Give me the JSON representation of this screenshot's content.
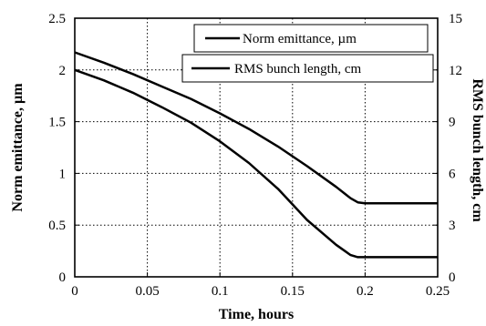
{
  "chart_data": {
    "type": "line",
    "xlabel": "Time, hours",
    "ylabel": "Norm emittance, µm",
    "y2label": "RMS bunch length, cm",
    "xlim": [
      0,
      0.25
    ],
    "ylim": [
      0,
      2.5
    ],
    "y2lim": [
      0,
      15
    ],
    "xticks": [
      "0",
      "0.05",
      "0.1",
      "0.15",
      "0.2",
      "0.25"
    ],
    "yticks": [
      "0",
      "0.5",
      "1",
      "1.5",
      "2",
      "2.5"
    ],
    "y2ticks": [
      "0",
      "3",
      "6",
      "9",
      "12",
      "15"
    ],
    "grid": true,
    "legend_position": "top-right",
    "series": [
      {
        "name": "Norm emittance, µm",
        "axis": "left",
        "x": [
          0,
          0.02,
          0.04,
          0.06,
          0.08,
          0.1,
          0.12,
          0.14,
          0.16,
          0.18,
          0.19,
          0.195,
          0.2,
          0.22,
          0.25
        ],
        "y": [
          2.17,
          2.07,
          1.96,
          1.84,
          1.72,
          1.58,
          1.43,
          1.26,
          1.07,
          0.87,
          0.76,
          0.72,
          0.71,
          0.71,
          0.71
        ]
      },
      {
        "name": "RMS bunch length, cm",
        "axis": "right",
        "x": [
          0,
          0.02,
          0.04,
          0.06,
          0.08,
          0.1,
          0.12,
          0.14,
          0.16,
          0.18,
          0.19,
          0.195,
          0.2,
          0.22,
          0.25
        ],
        "y": [
          12.0,
          11.4,
          10.68,
          9.84,
          8.94,
          7.86,
          6.6,
          5.1,
          3.3,
          1.86,
          1.26,
          1.14,
          1.14,
          1.14,
          1.14
        ]
      }
    ]
  }
}
